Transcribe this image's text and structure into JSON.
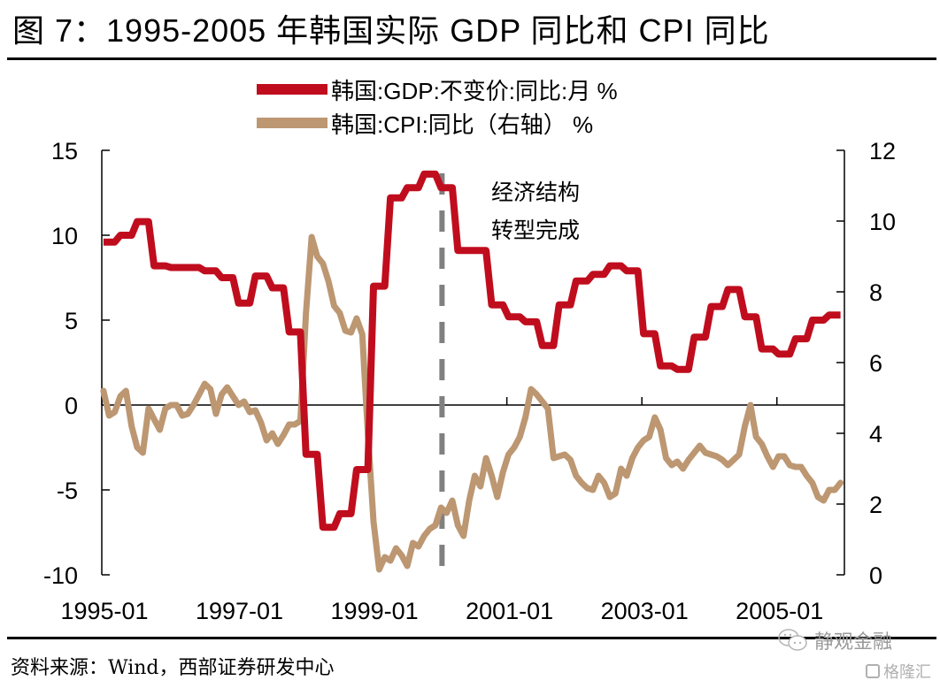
{
  "figure": {
    "title": "图 7：1995-2005 年韩国实际 GDP 同比和 CPI 同比",
    "source": "资料来源：Wind，西部证券研发中心",
    "watermark_text": "静观金融",
    "watermark_logo_text": "格隆汇",
    "icons": [
      "wechat-icon",
      "gelonghui-logo-icon"
    ]
  },
  "chart_data": {
    "type": "line",
    "title": "1995-2005 年韩国实际 GDP 同比和 CPI 同比",
    "xlabel": "",
    "ylabel_left": "",
    "ylabel_right": "",
    "x_start": "1995-01",
    "x_end": "2005-12",
    "x_frequency": "monthly",
    "x_tick_labels": [
      "1995-01",
      "1997-01",
      "1999-01",
      "2001-01",
      "2003-01",
      "2005-01"
    ],
    "y_left": {
      "range": [
        -10,
        15
      ],
      "ticks": [
        -10,
        -5,
        0,
        5,
        10,
        15
      ]
    },
    "y_right": {
      "range": [
        0,
        12
      ],
      "ticks": [
        0,
        2,
        4,
        6,
        8,
        10,
        12
      ]
    },
    "grid": false,
    "zero_line": true,
    "legend_position": "top-center",
    "annotation": {
      "lines": [
        "经济结构",
        "转型完成"
      ],
      "vline_at": "2000-01",
      "vline_style": "dashed",
      "vline_color": "#808080"
    },
    "series": [
      {
        "name": "韩国:GDP:不变价:同比:月 %",
        "axis": "left",
        "color": "#c00d1e",
        "frequency": "quarterly",
        "quarters_start": "1995Q1",
        "values": [
          9.6,
          10.0,
          10.8,
          8.2,
          8.1,
          8.1,
          7.9,
          7.5,
          6.0,
          7.6,
          6.9,
          4.3,
          -2.9,
          -7.2,
          -6.4,
          -3.8,
          7.0,
          12.2,
          12.8,
          13.6,
          12.8,
          9.1,
          9.1,
          5.9,
          5.2,
          4.9,
          3.5,
          5.9,
          7.3,
          7.7,
          8.2,
          7.9,
          4.2,
          2.3,
          2.1,
          4.0,
          5.8,
          6.8,
          5.2,
          3.3,
          3.0,
          3.9,
          5.0,
          5.3
        ]
      },
      {
        "name": "韩国:CPI:同比（右轴） %",
        "axis": "right",
        "color": "#bc9772",
        "frequency": "monthly",
        "values": [
          5.2,
          4.5,
          4.6,
          5.05,
          5.2,
          4.2,
          3.6,
          3.45,
          4.7,
          4.4,
          4.1,
          4.7,
          4.8,
          4.8,
          4.5,
          4.55,
          4.8,
          5.1,
          5.4,
          5.25,
          4.55,
          5.1,
          5.3,
          5.05,
          4.8,
          4.9,
          4.6,
          4.65,
          4.3,
          3.8,
          4.0,
          3.7,
          3.95,
          4.25,
          4.25,
          4.35,
          7.4,
          9.55,
          9.0,
          8.8,
          8.3,
          7.6,
          7.4,
          6.9,
          6.85,
          7.25,
          6.8,
          4.0,
          1.5,
          0.15,
          0.5,
          0.4,
          0.75,
          0.55,
          0.25,
          0.9,
          0.8,
          1.1,
          1.3,
          1.4,
          1.9,
          1.75,
          2.1,
          1.4,
          1.1,
          2.1,
          2.8,
          2.5,
          3.3,
          2.8,
          2.2,
          2.9,
          3.4,
          3.6,
          3.9,
          4.45,
          5.25,
          5.1,
          4.9,
          4.7,
          3.3,
          3.35,
          3.4,
          3.25,
          2.8,
          2.6,
          2.45,
          2.4,
          2.8,
          2.6,
          2.2,
          2.3,
          3.0,
          2.8,
          3.3,
          3.6,
          3.8,
          3.9,
          4.45,
          4.1,
          3.3,
          3.1,
          3.2,
          3.0,
          3.25,
          3.45,
          3.65,
          3.45,
          3.4,
          3.35,
          3.25,
          3.1,
          3.25,
          3.4,
          4.2,
          4.8,
          3.9,
          3.7,
          3.35,
          3.05,
          3.35,
          3.35,
          3.1,
          3.05,
          3.05,
          2.8,
          2.6,
          2.2,
          2.1,
          2.4,
          2.4,
          2.6
        ]
      }
    ]
  }
}
